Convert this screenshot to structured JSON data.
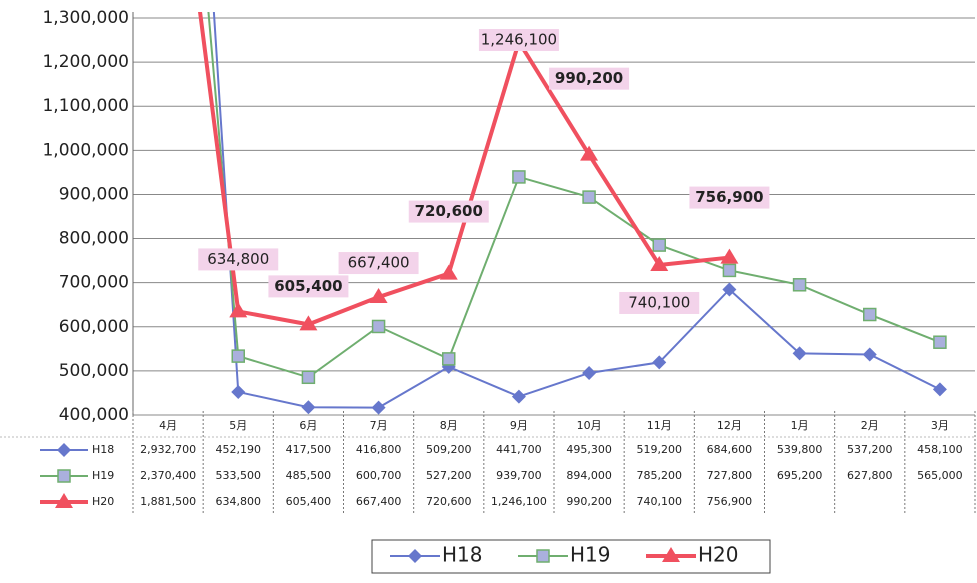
{
  "chart_data": {
    "type": "line",
    "categories": [
      "4月",
      "5月",
      "6月",
      "7月",
      "8月",
      "9月",
      "10月",
      "11月",
      "12月",
      "1月",
      "2月",
      "3月"
    ],
    "series": [
      {
        "name": "H18",
        "color": "#6677cc",
        "marker": "diamond",
        "values": [
          2932700,
          452190,
          417500,
          416800,
          509200,
          441700,
          495300,
          519200,
          684600,
          539800,
          537200,
          458100
        ],
        "value_labels": [
          "2,932,700",
          "452,190",
          "417,500",
          "416,800",
          "509,200",
          "441,700",
          "495,300",
          "519,200",
          "684,600",
          "539,800",
          "537,200",
          "458,100"
        ]
      },
      {
        "name": "H19",
        "color": "#6fae6f",
        "marker": "square",
        "values": [
          2370400,
          533500,
          485500,
          600700,
          527200,
          939700,
          894000,
          785200,
          727800,
          695200,
          627800,
          565000
        ],
        "value_labels": [
          "2,370,400",
          "533,500",
          "485,500",
          "600,700",
          "527,200",
          "939,700",
          "894,000",
          "785,200",
          "727,800",
          "695,200",
          "627,800",
          "565,000"
        ]
      },
      {
        "name": "H20",
        "color": "#f0505f",
        "marker": "triangle",
        "values": [
          1881500,
          634800,
          605400,
          667400,
          720600,
          1246100,
          990200,
          740100,
          756900,
          null,
          null,
          null
        ],
        "value_labels": [
          "1,881,500",
          "634,800",
          "605,400",
          "667,400",
          "720,600",
          "1,246,100",
          "990,200",
          "740,100",
          "756,900",
          null,
          null,
          null
        ]
      }
    ],
    "ylim": [
      400000,
      1300000
    ],
    "yticks": [
      {
        "value": 400000,
        "label": "400,000"
      },
      {
        "value": 500000,
        "label": "500,000"
      },
      {
        "value": 600000,
        "label": "600,000"
      },
      {
        "value": 700000,
        "label": "700,000"
      },
      {
        "value": 800000,
        "label": "800,000"
      },
      {
        "value": 900000,
        "label": "900,000"
      },
      {
        "value": 1000000,
        "label": "1,000,000"
      },
      {
        "value": 1100000,
        "label": "1,100,000"
      },
      {
        "value": 1200000,
        "label": "1,200,000"
      },
      {
        "value": 1300000,
        "label": "1,300,000"
      }
    ],
    "grid": true,
    "legend": "bottom",
    "data_labels_series": 2
  }
}
